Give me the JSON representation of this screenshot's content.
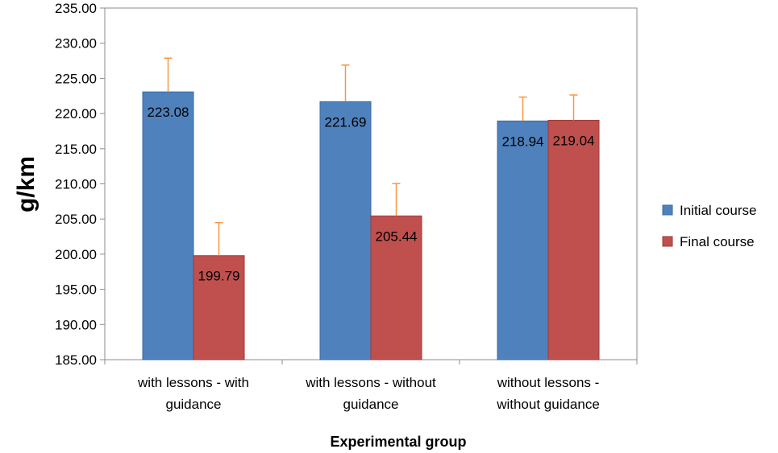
{
  "chart_data": {
    "type": "bar",
    "title": "",
    "xlabel": "Experimental group",
    "ylabel": "g/km",
    "ylim": [
      185,
      235
    ],
    "y_tick_step": 5,
    "y_tick_labels": [
      "185.00",
      "190.00",
      "195.00",
      "200.00",
      "205.00",
      "210.00",
      "215.00",
      "220.00",
      "225.00",
      "230.00",
      "235.00"
    ],
    "grid": false,
    "legend_position": "right",
    "categories": [
      [
        "with lessons - with",
        "guidance"
      ],
      [
        "with lessons - without",
        "guidance"
      ],
      [
        "without lessons -",
        "without guidance"
      ]
    ],
    "series": [
      {
        "name": "Initial  course",
        "color": "#4f81bd",
        "edge_color": "#3a6aa0",
        "values": [
          223.08,
          221.69,
          218.94
        ],
        "labels": [
          "223.08",
          "221.69",
          "218.94"
        ],
        "error": [
          4.8,
          5.2,
          3.4
        ]
      },
      {
        "name": "Final course",
        "color": "#c0504d",
        "edge_color": "#9c3b39",
        "values": [
          199.79,
          205.44,
          219.04
        ],
        "labels": [
          "199.79",
          "205.44",
          "219.04"
        ],
        "error": [
          4.7,
          4.6,
          3.6
        ]
      }
    ],
    "error_bar_color": "#f79646"
  }
}
